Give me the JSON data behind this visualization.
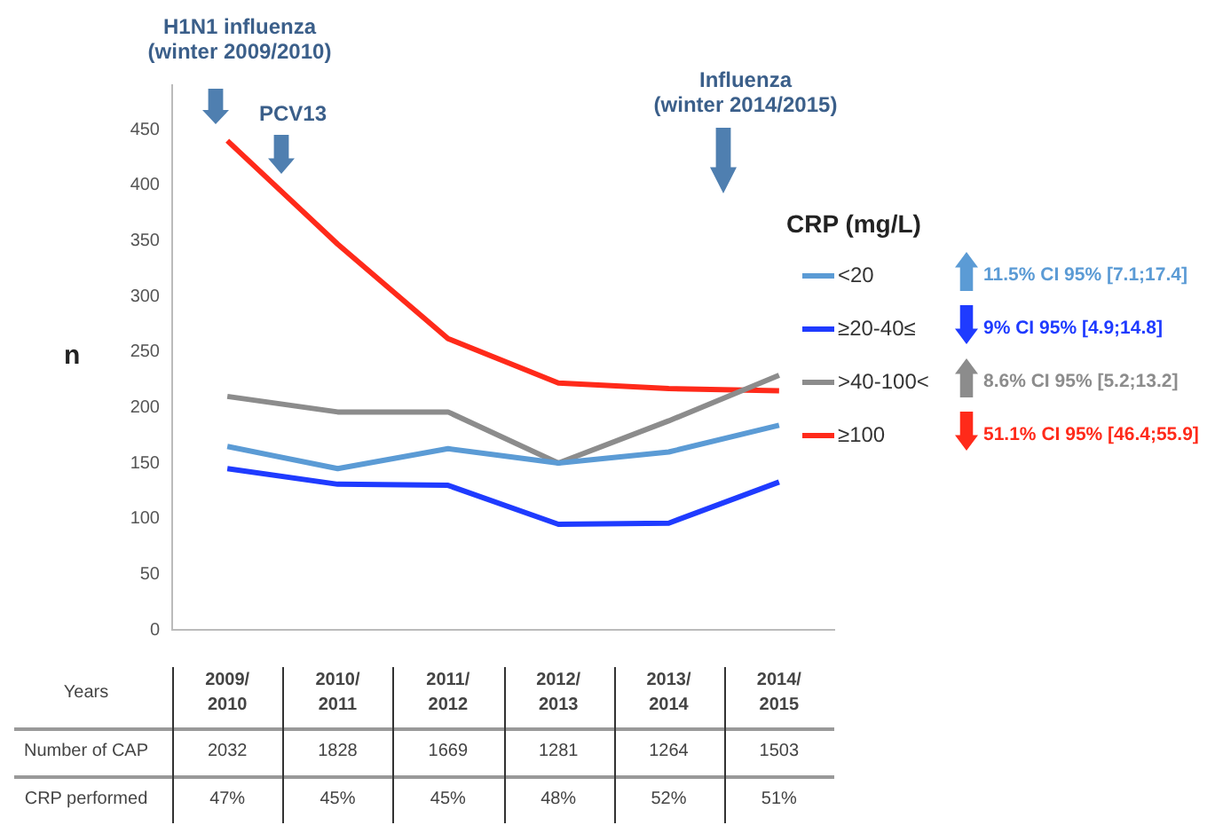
{
  "chart_data": {
    "type": "line",
    "ylabel": "n",
    "xlabel": "Years",
    "legend_title": "CRP (mg/L)",
    "legend": "right",
    "grid": false,
    "marker": "none",
    "categories": [
      "2009/2010",
      "2010/2011",
      "2011/2012",
      "2012/2013",
      "2013/2014",
      "2014/2015"
    ],
    "ylim": [
      0,
      490
    ],
    "yticks": [
      0,
      50,
      100,
      150,
      200,
      250,
      300,
      350,
      400,
      450
    ],
    "series": [
      {
        "name": "<20",
        "color": "#5b9bd5",
        "values": [
          165,
          145,
          163,
          150,
          160,
          184
        ]
      },
      {
        "name": "≥20-40≤",
        "color": "#1f3bff",
        "values": [
          145,
          131,
          130,
          95,
          96,
          133
        ]
      },
      {
        "name": ">40-100<",
        "color": "#8c8c8c",
        "values": [
          210,
          196,
          196,
          150,
          188,
          229
        ]
      },
      {
        "name": "≥100",
        "color": "#ff2a1a",
        "values": [
          440,
          347,
          262,
          222,
          217,
          215
        ]
      }
    ],
    "annotations": [
      "H1N1 influenza (winter 2009/2010)",
      "PCV13",
      "Influenza (winter 2014/2015)",
      "11.5% CI 95% [7.1;17.4]",
      "9% CI 95% [4.9;14.8]",
      "8.6% CI 95% [5.2;13.2]",
      "51.1% CI 95% [46.4;55.9]",
      "Number of CAP",
      "2032",
      "1828",
      "1669",
      "1281",
      "1264",
      "1503",
      "CRP performed",
      "47%",
      "45%",
      "45%",
      "48%",
      "52%",
      "51%"
    ]
  }
}
